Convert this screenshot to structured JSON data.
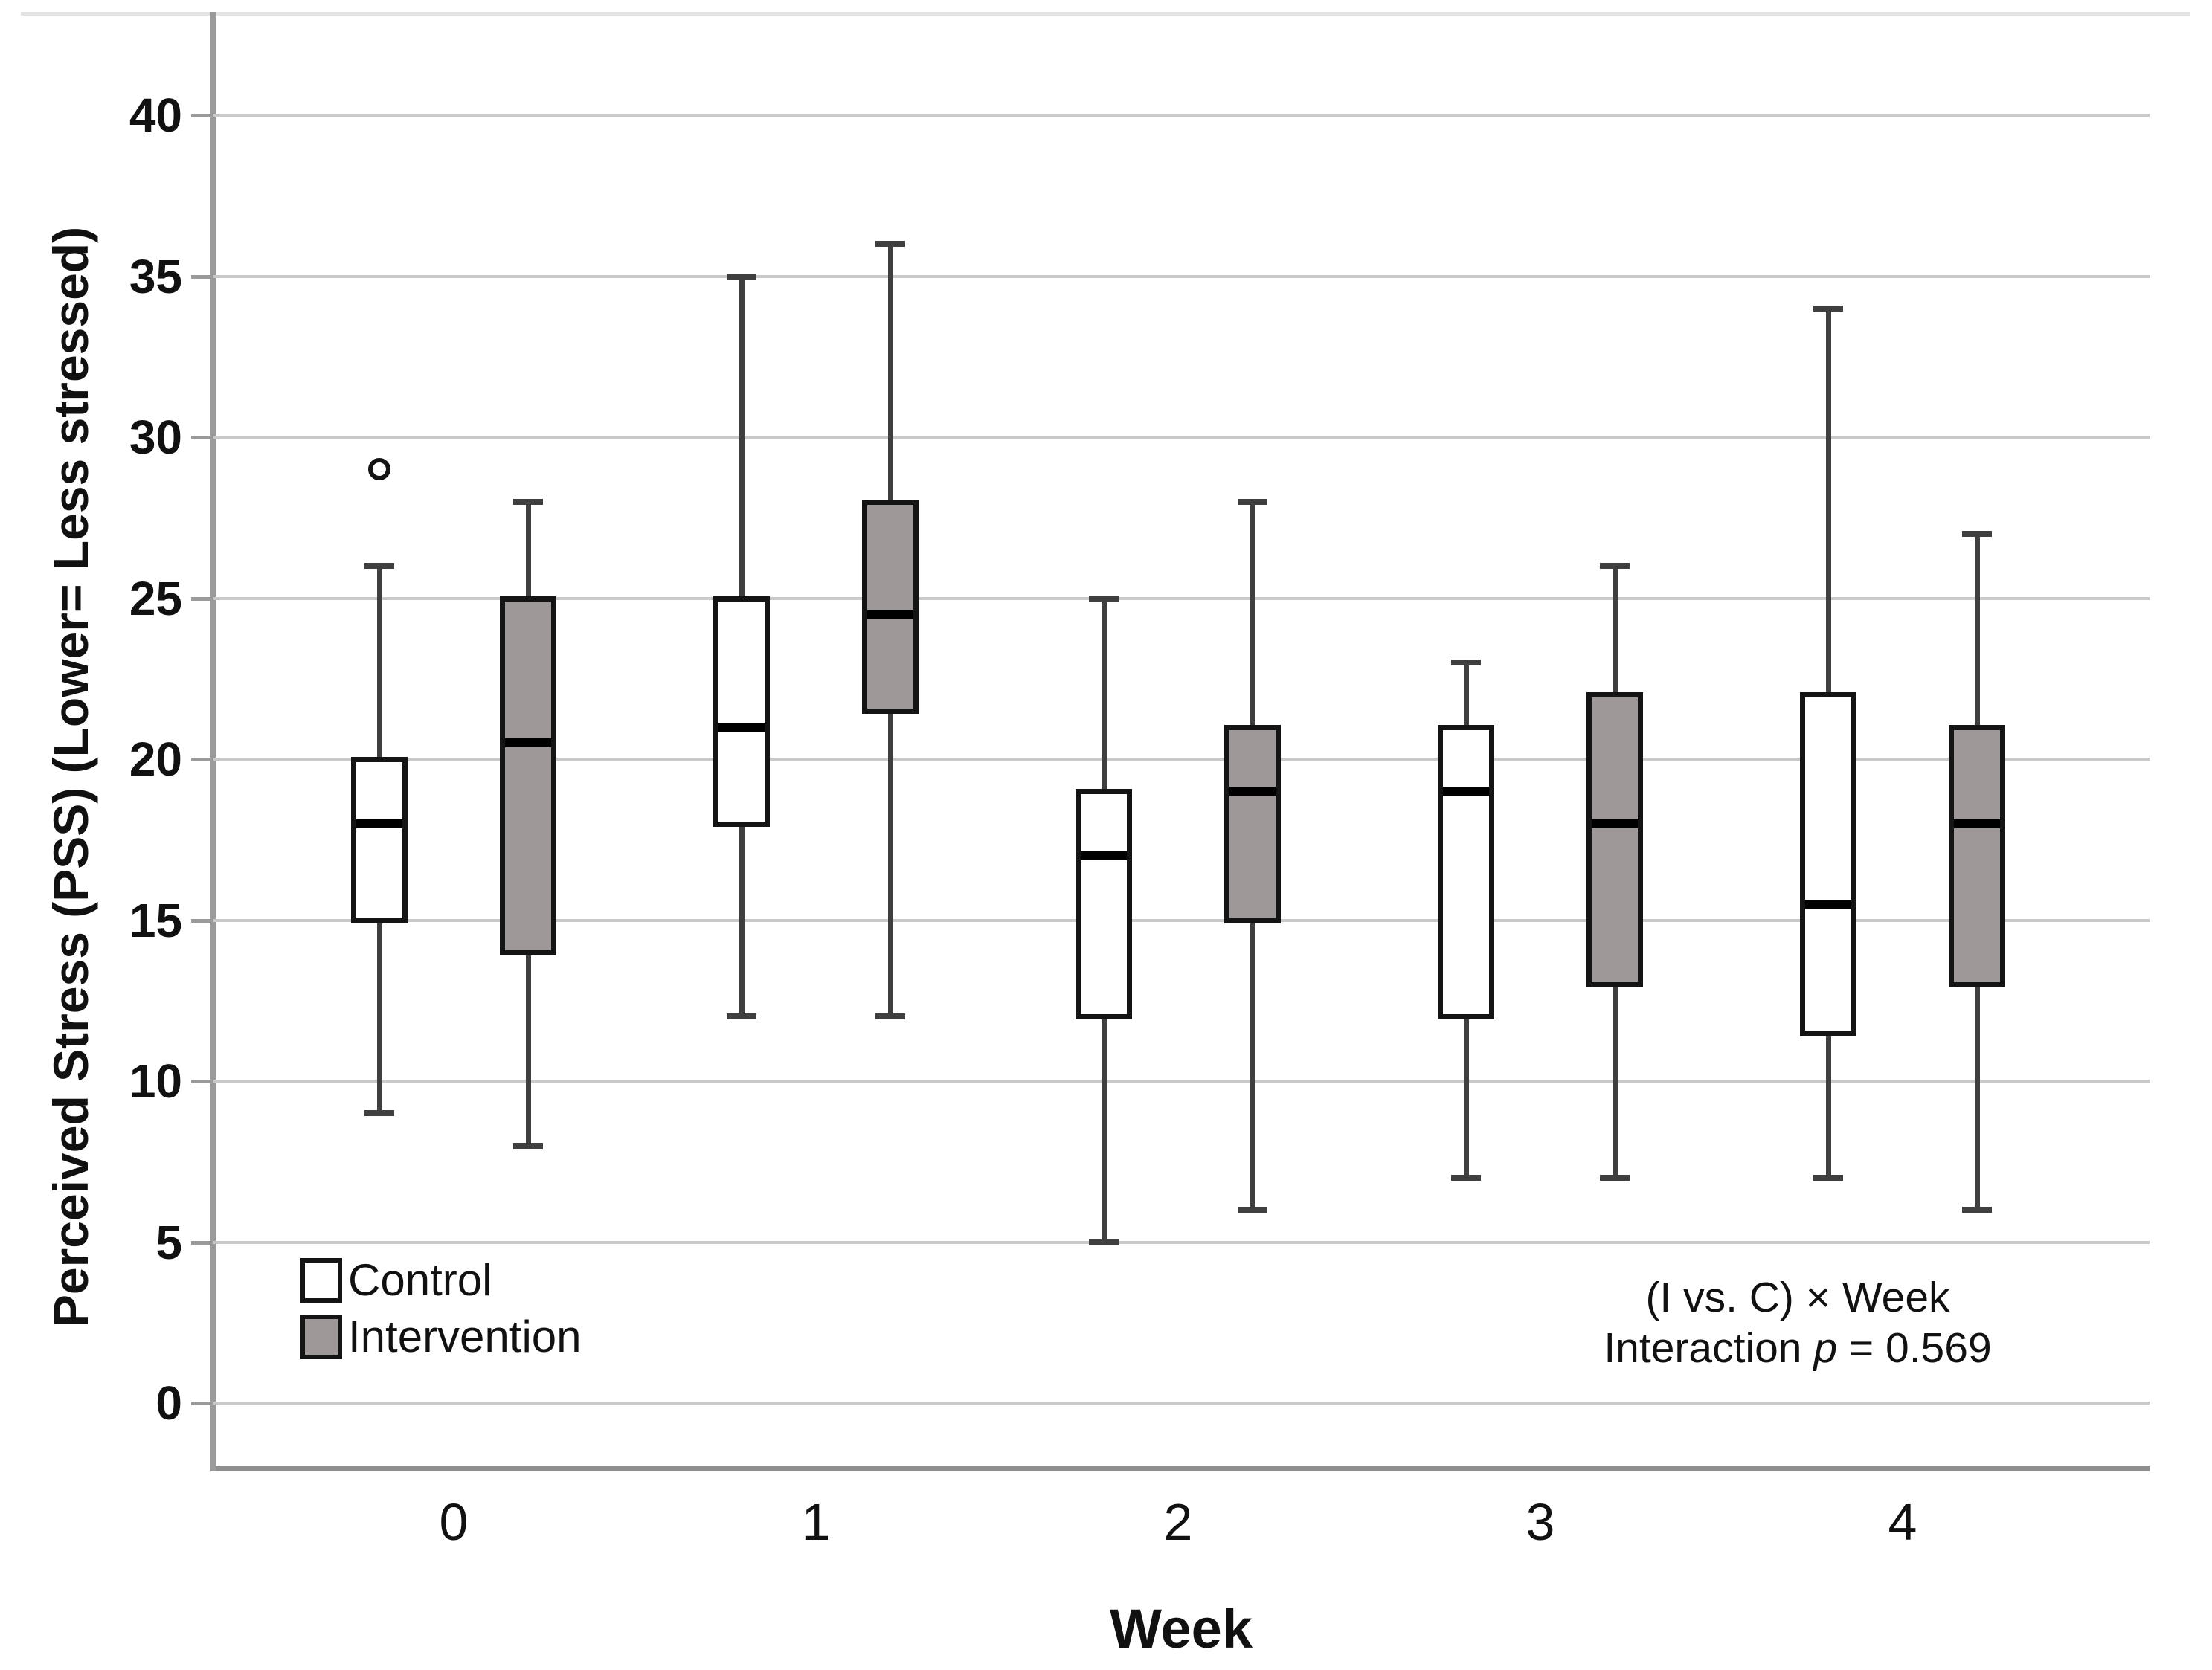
{
  "figure": {
    "background": "#ffffff"
  },
  "chart_data": {
    "type": "boxplot",
    "title": "",
    "xlabel": "Week",
    "ylabel": "Perceived Stress (PSS) (Lower= Less stressed)",
    "categories": [
      "0",
      "1",
      "2",
      "3",
      "4"
    ],
    "y_ticks": [
      0,
      5,
      10,
      15,
      20,
      25,
      30,
      35,
      40
    ],
    "ylim": [
      -2,
      42.5
    ],
    "grid": "horizontal-only",
    "legend_position": "inside-lower-left",
    "series": [
      {
        "name": "Control",
        "fill": "#ffffff",
        "weeks": [
          {
            "week": "0",
            "whislo": 9,
            "q1": 15,
            "med": 18,
            "q3": 20,
            "whishi": 26,
            "outliers": [
              29
            ]
          },
          {
            "week": "1",
            "whislo": 12,
            "q1": 18,
            "med": 21,
            "q3": 25,
            "whishi": 35,
            "outliers": []
          },
          {
            "week": "2",
            "whislo": 5,
            "q1": 12,
            "med": 17,
            "q3": 19,
            "whishi": 25,
            "outliers": []
          },
          {
            "week": "3",
            "whislo": 7,
            "q1": 12,
            "med": 19,
            "q3": 21,
            "whishi": 23,
            "outliers": []
          },
          {
            "week": "4",
            "whislo": 7,
            "q1": 11.5,
            "med": 15.5,
            "q3": 22,
            "whishi": 34,
            "outliers": []
          }
        ]
      },
      {
        "name": "Intervention",
        "fill": "#9e9998",
        "weeks": [
          {
            "week": "0",
            "whislo": 8,
            "q1": 14,
            "med": 20.5,
            "q3": 25,
            "whishi": 28,
            "outliers": []
          },
          {
            "week": "1",
            "whislo": 12,
            "q1": 21.5,
            "med": 24.5,
            "q3": 28,
            "whishi": 36,
            "outliers": []
          },
          {
            "week": "2",
            "whislo": 6,
            "q1": 15,
            "med": 19,
            "q3": 21,
            "whishi": 28,
            "outliers": []
          },
          {
            "week": "3",
            "whislo": 7,
            "q1": 13,
            "med": 18,
            "q3": 22,
            "whishi": 26,
            "outliers": []
          },
          {
            "week": "4",
            "whislo": 6,
            "q1": 13,
            "med": 18,
            "q3": 21,
            "whishi": 27,
            "outliers": []
          }
        ]
      }
    ],
    "annotation": {
      "line1": "(I vs. C) × Week",
      "line2_prefix": "Interaction ",
      "line2_p": "p",
      "line2_suffix": " = 0.569"
    },
    "colors": {
      "control_fill": "#ffffff",
      "intervention_fill": "#9e9998",
      "box_border": "#141414",
      "median": "#000000",
      "whisker": "#3f3f3f",
      "gridline": "#c9c9c9",
      "axis": "#9a9a9a",
      "text": "#111111"
    }
  }
}
